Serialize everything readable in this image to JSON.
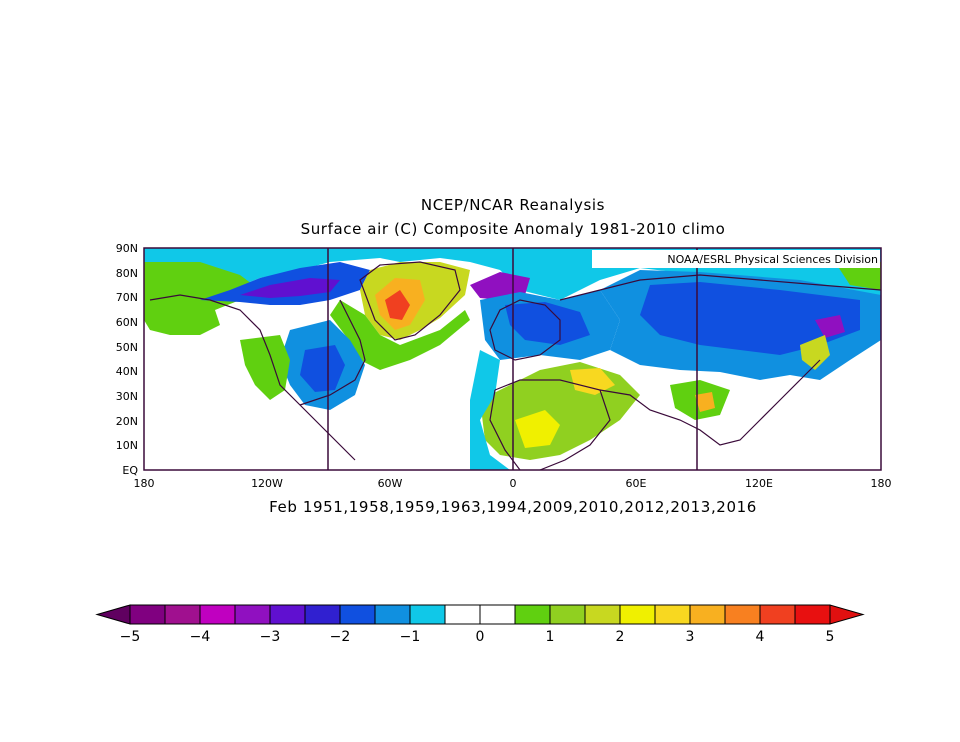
{
  "title_line1": "NCEP/NCAR Reanalysis",
  "title_line2": "Surface air (C) Composite Anomaly 1981-2010 climo",
  "credit": "NOAA/ESRL Physical Sciences Division",
  "subtitle": "Feb 1951,1958,1959,1963,1994,2009,2010,2012,2013,2016",
  "lat_ticks": [
    "90N",
    "80N",
    "70N",
    "60N",
    "50N",
    "40N",
    "30N",
    "20N",
    "10N",
    "EQ"
  ],
  "lon_ticks": [
    "180",
    "120W",
    "60W",
    "0",
    "60E",
    "120E",
    "180"
  ],
  "colorbar": {
    "labels": [
      "-5",
      "-4",
      "-3",
      "-2",
      "-1",
      "0",
      "1",
      "2",
      "3",
      "4",
      "5"
    ],
    "colors": [
      "#800080",
      "#a0108f",
      "#c000c0",
      "#9010c0",
      "#6010d0",
      "#3020d0",
      "#1050e0",
      "#1090e0",
      "#10c8e8",
      "#ffffff",
      "#ffffff",
      "#60d010",
      "#90d020",
      "#c8d820",
      "#f0f000",
      "#f8d820",
      "#f8b020",
      "#f88020",
      "#f04020",
      "#e81010"
    ],
    "min_color": "#600060",
    "max_color": "#e01010"
  },
  "regions": {
    "warm": [
      {
        "name": "greenland-baffin",
        "level": 3
      },
      {
        "name": "labrador",
        "level": 2
      },
      {
        "name": "alaska",
        "level": 1
      },
      {
        "name": "western-us",
        "level": 1
      },
      {
        "name": "north-africa",
        "level": 2
      },
      {
        "name": "middle-east",
        "level": 2
      },
      {
        "name": "tibet",
        "level": 2
      },
      {
        "name": "kamchatka",
        "level": 2
      }
    ],
    "cold": [
      {
        "name": "canadian-arctic",
        "level": -3
      },
      {
        "name": "arctic-ocean",
        "level": -2
      },
      {
        "name": "europe",
        "level": -2
      },
      {
        "name": "siberia",
        "level": -3
      },
      {
        "name": "eastern-us",
        "level": -2
      }
    ]
  }
}
